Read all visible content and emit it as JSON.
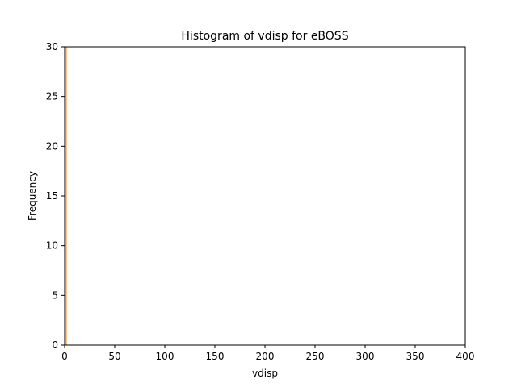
{
  "chart_data": {
    "type": "bar",
    "title": "Histogram of vdisp for eBOSS",
    "xlabel": "vdisp",
    "ylabel": "Frequency",
    "xlim": [
      0,
      400
    ],
    "ylim": [
      0,
      30
    ],
    "xticks": [
      "0",
      "50",
      "100",
      "150",
      "200",
      "250",
      "300",
      "350",
      "400"
    ],
    "yticks": [
      "0",
      "5",
      "10",
      "15",
      "20",
      "25",
      "30"
    ],
    "grid": false,
    "bins": [
      {
        "x0": 0,
        "x1": 2,
        "value": 30
      }
    ],
    "colors": {
      "bar": "#ff7f0e",
      "axis": "#000000"
    }
  }
}
